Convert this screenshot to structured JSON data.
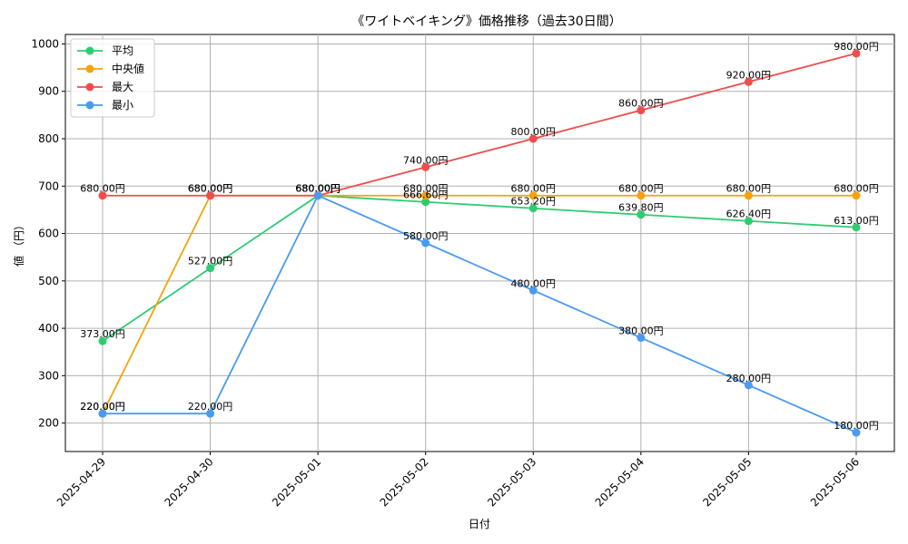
{
  "chart_data": {
    "type": "line",
    "title": "《ワイトベイキング》価格推移（過去30日間）",
    "xlabel": "日付",
    "ylabel": "値 （円）",
    "categories": [
      "2025-04-29",
      "2025-04-30",
      "2025-05-01",
      "2025-05-02",
      "2025-05-03",
      "2025-05-04",
      "2025-05-05",
      "2025-05-06"
    ],
    "ylim": [
      140,
      1020
    ],
    "yticks": [
      200,
      300,
      400,
      500,
      600,
      700,
      800,
      900,
      1000
    ],
    "grid": true,
    "legend_position": "top-left",
    "value_suffix": "円",
    "series": [
      {
        "name": "平均",
        "color": "#2ecc71",
        "values": [
          373.0,
          527.0,
          680.0,
          666.6,
          653.2,
          639.8,
          626.4,
          613.0
        ]
      },
      {
        "name": "中央値",
        "color": "#f5a30a",
        "values": [
          220.0,
          680.0,
          680.0,
          680.0,
          680.0,
          680.0,
          680.0,
          680.0
        ]
      },
      {
        "name": "最大",
        "color": "#ef4d4d",
        "values": [
          680.0,
          680.0,
          680.0,
          740.0,
          800.0,
          860.0,
          920.0,
          980.0
        ]
      },
      {
        "name": "最小",
        "color": "#4a9af0",
        "values": [
          220.0,
          220.0,
          680.0,
          580.0,
          480.0,
          380.0,
          280.0,
          180.0
        ]
      }
    ]
  }
}
